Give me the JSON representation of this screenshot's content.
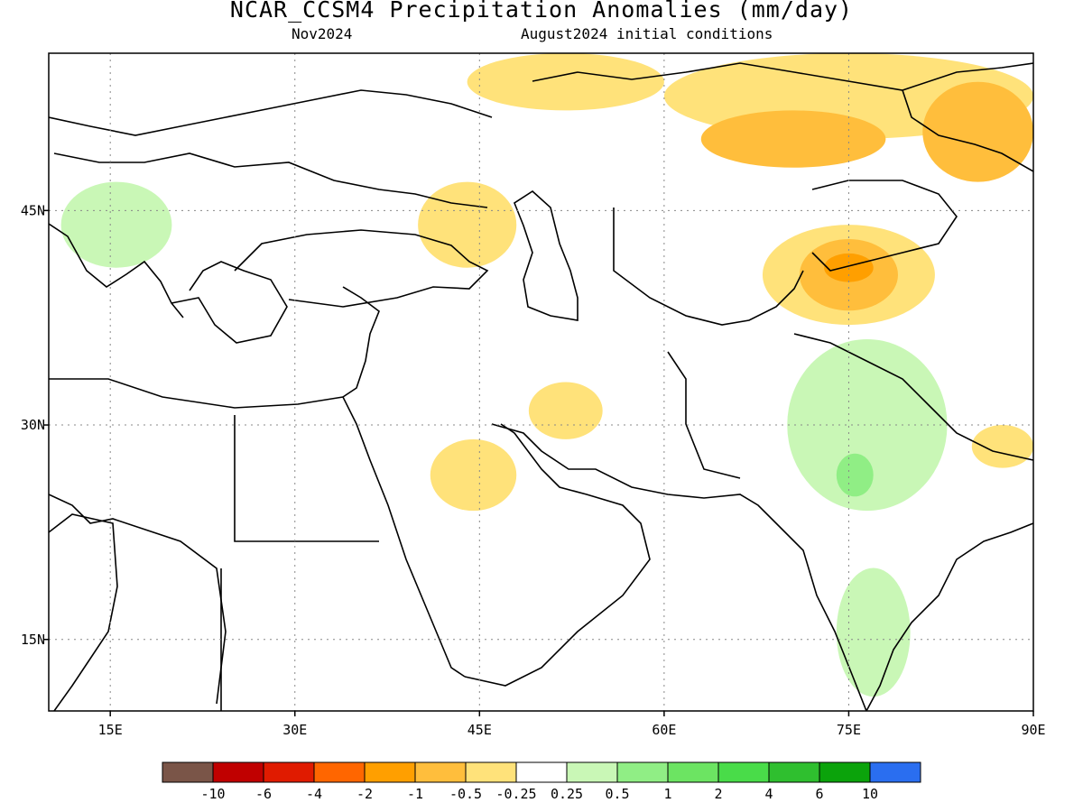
{
  "title": "NCAR_CCSM4 Precipitation Anomalies (mm/day)",
  "subtitle_left": "Nov2024",
  "subtitle_right": "August2024 initial conditions",
  "lon_ticks": [
    {
      "lon": 15,
      "label": "15E"
    },
    {
      "lon": 30,
      "label": "30E"
    },
    {
      "lon": 45,
      "label": "45E"
    },
    {
      "lon": 60,
      "label": "60E"
    },
    {
      "lon": 75,
      "label": "75E"
    },
    {
      "lon": 90,
      "label": "90E"
    }
  ],
  "lat_ticks": [
    {
      "lat": 45,
      "label": "45N"
    },
    {
      "lat": 30,
      "label": "30N"
    },
    {
      "lat": 15,
      "label": "15N"
    }
  ],
  "map_extent": {
    "lon_min": 10,
    "lon_max": 90,
    "lat_min": 10,
    "lat_max": 56
  },
  "colorbar": {
    "colors": [
      "#7a5548",
      "#c00000",
      "#e01b00",
      "#ff6600",
      "#ff9f00",
      "#ffbe3c",
      "#ffe27a",
      "#ffffff",
      "#c9f7b6",
      "#90ee85",
      "#6ce462",
      "#49dc49",
      "#2fbf2f",
      "#0ba30b",
      "#2a6ef0"
    ],
    "labels": [
      "-10",
      "-6",
      "-4",
      "-2",
      "-1",
      "-0.5",
      "-0.25",
      "0.25",
      "0.5",
      "1",
      "2",
      "4",
      "6",
      "10"
    ]
  },
  "anomaly_regions": [
    {
      "category": 6,
      "lon": [
        44,
        60
      ],
      "lat": [
        52,
        56
      ]
    },
    {
      "category": 6,
      "lon": [
        60,
        90
      ],
      "lat": [
        50,
        56
      ]
    },
    {
      "category": 5,
      "lon": [
        63,
        78
      ],
      "lat": [
        48,
        52
      ]
    },
    {
      "category": 5,
      "lon": [
        81,
        90
      ],
      "lat": [
        47,
        54
      ]
    },
    {
      "category": 6,
      "lon": [
        40,
        48
      ],
      "lat": [
        41,
        47
      ]
    },
    {
      "category": 6,
      "lon": [
        68,
        82
      ],
      "lat": [
        37,
        44
      ]
    },
    {
      "category": 5,
      "lon": [
        71,
        79
      ],
      "lat": [
        38,
        43
      ]
    },
    {
      "category": 4,
      "lon": [
        73,
        77
      ],
      "lat": [
        40,
        42
      ]
    },
    {
      "category": 6,
      "lon": [
        85,
        90
      ],
      "lat": [
        27,
        30
      ]
    },
    {
      "category": 6,
      "lon": [
        49,
        55
      ],
      "lat": [
        29,
        33
      ]
    },
    {
      "category": 6,
      "lon": [
        41,
        48
      ],
      "lat": [
        24,
        29
      ]
    },
    {
      "category": 8,
      "lon": [
        70,
        83
      ],
      "lat": [
        24,
        36
      ]
    },
    {
      "category": 9,
      "lon": [
        74,
        77
      ],
      "lat": [
        25,
        28
      ]
    },
    {
      "category": 8,
      "lon": [
        74,
        80
      ],
      "lat": [
        11,
        20
      ]
    },
    {
      "category": 8,
      "lon": [
        11,
        20
      ],
      "lat": [
        41,
        47
      ]
    }
  ]
}
